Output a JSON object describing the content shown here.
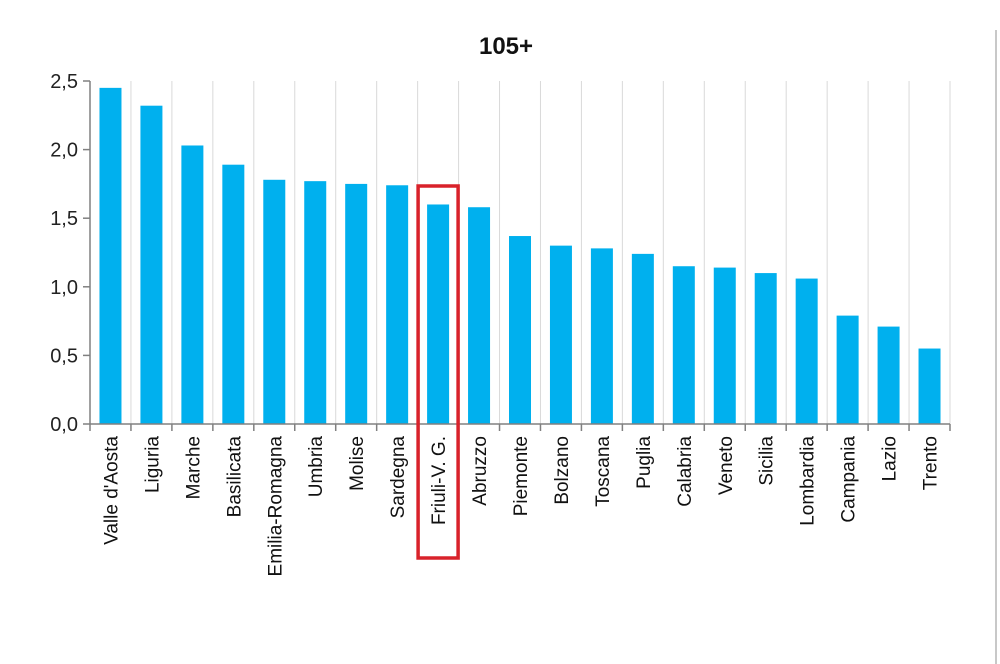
{
  "chart_data": {
    "type": "bar",
    "title": "105+",
    "xlabel": "",
    "ylabel": "",
    "ylim": [
      0,
      2.5
    ],
    "yticks": [
      "0,0",
      "0,5",
      "1,0",
      "1,5",
      "2,0",
      "2,5"
    ],
    "ytick_values": [
      0,
      0.5,
      1.0,
      1.5,
      2.0,
      2.5
    ],
    "grid": "vertical",
    "legend": "none",
    "categories": [
      "Valle d'Aosta",
      "Liguria",
      "Marche",
      "Basilicata",
      "Emilia-Romagna",
      "Umbria",
      "Molise",
      "Sardegna",
      "Friuli-V. G.",
      "Abruzzo",
      "Piemonte",
      "Bolzano",
      "Toscana",
      "Puglia",
      "Calabria",
      "Veneto",
      "Sicilia",
      "Lombardia",
      "Campania",
      "Lazio",
      "Trento"
    ],
    "values": [
      2.45,
      2.32,
      2.03,
      1.89,
      1.78,
      1.77,
      1.75,
      1.74,
      1.6,
      1.58,
      1.37,
      1.3,
      1.28,
      1.24,
      1.15,
      1.14,
      1.1,
      1.06,
      0.79,
      0.71,
      0.55
    ],
    "highlighted_category": "Friuli-V. G.",
    "colors": {
      "bar": "#00b0ee",
      "highlight_box": "#d9222a",
      "grid": "#d9d9d9",
      "axis": "#808080"
    }
  }
}
